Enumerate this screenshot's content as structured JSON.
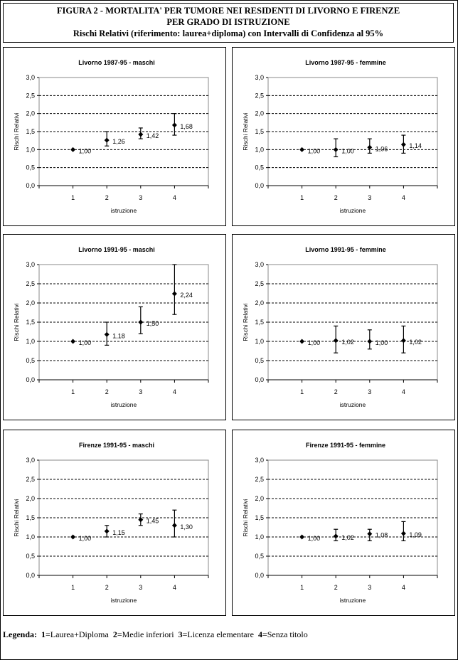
{
  "header": {
    "line1": "FIGURA 2 - MORTALITA' PER TUMORE NEI RESIDENTI DI LIVORNO E FIRENZE",
    "line2": "PER GRADO DI ISTRUZIONE",
    "line3": "Rischi Relativi (riferimento: laurea+diploma) con Intervalli di Confidenza al 95%"
  },
  "legend": {
    "label": "Legenda:",
    "items": [
      {
        "key": "1",
        "text": "=Laurea+Diploma"
      },
      {
        "key": "2",
        "text": "=Medie inferiori"
      },
      {
        "key": "3",
        "text": "=Licenza elementare"
      },
      {
        "key": "4",
        "text": "=Senza titolo"
      }
    ]
  },
  "chart_data": [
    {
      "type": "scatter",
      "title": "Livorno 1987-95 - maschi",
      "xlabel": "istruzione",
      "ylabel": "Rischi Relativi",
      "x": [
        1,
        2,
        3,
        4
      ],
      "y": [
        1.0,
        1.26,
        1.42,
        1.68
      ],
      "labels": [
        "1,00",
        "1,26",
        "1,42",
        "1,68"
      ],
      "ci_low": [
        1.0,
        1.1,
        1.3,
        1.4
      ],
      "ci_high": [
        1.0,
        1.5,
        1.6,
        2.0
      ],
      "xlim": [
        0,
        5
      ],
      "ylim": [
        0,
        3
      ],
      "yticks": [
        "0,0",
        "0,5",
        "1,0",
        "1,5",
        "2,0",
        "2,5",
        "3,0"
      ],
      "grid": true
    },
    {
      "type": "scatter",
      "title": "Livorno 1987-95 - femmine",
      "xlabel": "istruzione",
      "ylabel": "Rischi Relativi",
      "x": [
        1,
        2,
        3,
        4
      ],
      "y": [
        1.0,
        1.0,
        1.06,
        1.14
      ],
      "labels": [
        "1,00",
        "1,00",
        "1,06",
        "1,14"
      ],
      "ci_low": [
        1.0,
        0.8,
        0.9,
        0.9
      ],
      "ci_high": [
        1.0,
        1.3,
        1.3,
        1.4
      ],
      "xlim": [
        0,
        5
      ],
      "ylim": [
        0,
        3
      ],
      "yticks": [
        "0,0",
        "0,5",
        "1,0",
        "1,5",
        "2,0",
        "2,5",
        "3,0"
      ],
      "grid": true
    },
    {
      "type": "scatter",
      "title": "Livorno 1991-95 - maschi",
      "xlabel": "istruzione",
      "ylabel": "Rischi Relativi",
      "x": [
        1,
        2,
        3,
        4
      ],
      "y": [
        1.0,
        1.18,
        1.5,
        2.24
      ],
      "labels": [
        "1,00",
        "1,18",
        "1,50",
        "2,24"
      ],
      "ci_low": [
        1.0,
        0.9,
        1.2,
        1.7
      ],
      "ci_high": [
        1.0,
        1.5,
        1.9,
        3.0
      ],
      "xlim": [
        0,
        5
      ],
      "ylim": [
        0,
        3
      ],
      "yticks": [
        "0,0",
        "0,5",
        "1,0",
        "1,5",
        "2,0",
        "2,5",
        "3,0"
      ],
      "grid": true
    },
    {
      "type": "scatter",
      "title": "Livorno 1991-95 - femmine",
      "xlabel": "istruzione",
      "ylabel": "Rischi Relativi",
      "x": [
        1,
        2,
        3,
        4
      ],
      "y": [
        1.0,
        1.02,
        1.0,
        1.02
      ],
      "labels": [
        "1,00",
        "1,02",
        "1,00",
        "1,02"
      ],
      "ci_low": [
        1.0,
        0.7,
        0.8,
        0.7
      ],
      "ci_high": [
        1.0,
        1.4,
        1.3,
        1.4
      ],
      "xlim": [
        0,
        5
      ],
      "ylim": [
        0,
        3
      ],
      "yticks": [
        "0,0",
        "0,5",
        "1,0",
        "1,5",
        "2,0",
        "2,5",
        "3,0"
      ],
      "grid": true
    },
    {
      "type": "scatter",
      "title": "Firenze 1991-95 - maschi",
      "xlabel": "istruzione",
      "ylabel": "Rischi Relativi",
      "x": [
        1,
        2,
        3,
        4
      ],
      "y": [
        1.0,
        1.15,
        1.45,
        1.3
      ],
      "labels": [
        "1,00",
        "1,15",
        "1,45",
        "1,30"
      ],
      "ci_low": [
        1.0,
        1.0,
        1.3,
        1.0
      ],
      "ci_high": [
        1.0,
        1.3,
        1.6,
        1.7
      ],
      "xlim": [
        0,
        5
      ],
      "ylim": [
        0,
        3
      ],
      "yticks": [
        "0,0",
        "0,5",
        "1,0",
        "1,5",
        "2,0",
        "2,5",
        "3,0"
      ],
      "grid": true
    },
    {
      "type": "scatter",
      "title": "Firenze 1991-95 - femmine",
      "xlabel": "istruzione",
      "ylabel": "Rischi Relativi",
      "x": [
        1,
        2,
        3,
        4
      ],
      "y": [
        1.0,
        1.02,
        1.08,
        1.09
      ],
      "labels": [
        "1,00",
        "1,02",
        "1,08",
        "1,09"
      ],
      "ci_low": [
        1.0,
        0.9,
        0.9,
        0.9
      ],
      "ci_high": [
        1.0,
        1.2,
        1.2,
        1.4
      ],
      "xlim": [
        0,
        5
      ],
      "ylim": [
        0,
        3
      ],
      "yticks": [
        "0,0",
        "0,5",
        "1,0",
        "1,5",
        "2,0",
        "2,5",
        "3,0"
      ],
      "grid": true
    }
  ]
}
